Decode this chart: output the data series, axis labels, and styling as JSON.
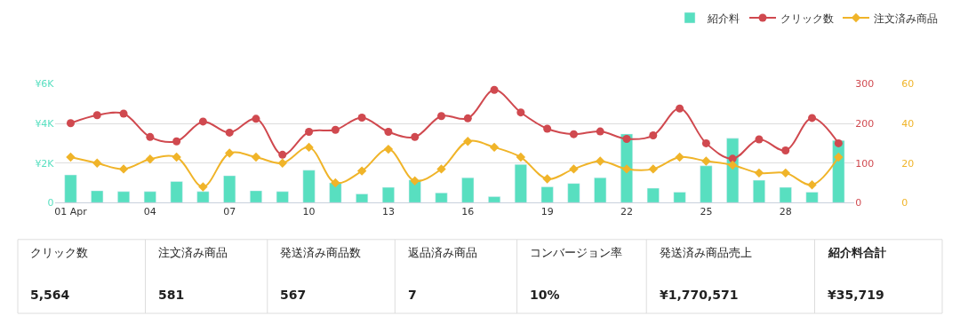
{
  "chart_data": [
    {
      "type": "bar",
      "categories": [
        "01 Apr",
        null,
        null,
        "04",
        null,
        null,
        "07",
        null,
        null,
        "10",
        null,
        null,
        "13",
        null,
        null,
        "16",
        null,
        null,
        "19",
        null,
        null,
        "22",
        null,
        null,
        "25",
        null,
        null,
        "28",
        null,
        null
      ],
      "series": [
        {
          "name": "紹介料",
          "type": "bar",
          "color": "#58dfc0",
          "values": [
            1400,
            600,
            560,
            560,
            1070,
            560,
            1360,
            600,
            560,
            1640,
            1000,
            440,
            770,
            1150,
            490,
            1260,
            300,
            1930,
            800,
            970,
            1260,
            3470,
            730,
            530,
            1860,
            3250,
            1130,
            770,
            530,
            3140
          ]
        },
        {
          "name": "クリック数",
          "type": "line",
          "axis": "y2",
          "color": "#d0494f",
          "marker": "circle",
          "values": [
            201,
            221,
            225,
            166,
            155,
            205,
            177,
            212,
            121,
            179,
            184,
            215,
            179,
            166,
            219,
            213,
            285,
            228,
            187,
            173,
            180,
            161,
            170,
            238,
            150,
            111,
            160,
            132,
            214,
            150
          ]
        },
        {
          "name": "注文済み商品",
          "type": "line",
          "axis": "y3",
          "color": "#f0b429",
          "marker": "diamond",
          "values": [
            23,
            20,
            17,
            22,
            23,
            8,
            25,
            23,
            20,
            28,
            10,
            16,
            27,
            11,
            17,
            31,
            28,
            23,
            12,
            17,
            21,
            17,
            17,
            23,
            21,
            19,
            15,
            15,
            9,
            23
          ]
        }
      ],
      "ylim": [
        0,
        6000
      ],
      "yticks": [
        0,
        {
          "value": 2000,
          "label": "¥2K"
        },
        {
          "value": 4000,
          "label": "¥4K"
        },
        {
          "value": 6000,
          "label": "¥6K"
        }
      ],
      "y2lim": [
        0,
        300
      ],
      "y2ticks": [
        0,
        100,
        200,
        300
      ],
      "y3lim": [
        0,
        60
      ],
      "y3ticks": [
        0,
        20,
        40,
        60
      ],
      "grid": "y",
      "legend": "top right"
    },
    {
      "type": "other",
      "annotations": [
        "クリック数",
        "5,564",
        "注文済み商品",
        "581",
        "発送済み商品数",
        "567",
        "返品済み商品",
        "7",
        "コンバージョン率",
        "10%",
        "発送済み商品売上",
        "¥1,770,571",
        "紹介料合計",
        "¥35,719"
      ]
    }
  ]
}
